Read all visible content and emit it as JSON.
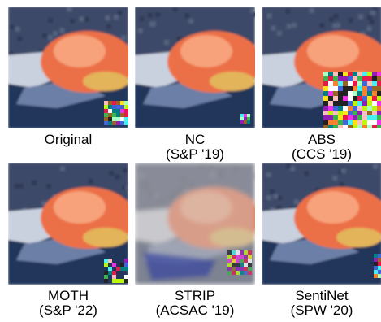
{
  "panels": [
    {
      "label": "Original"
    },
    {
      "label": "NC",
      "venue": "(S&P '19)"
    },
    {
      "label": "ABS",
      "venue": "(CCS '19)"
    },
    {
      "label": "MOTH",
      "venue": "(S&P '22)"
    },
    {
      "label": "STRIP",
      "venue": "(ACSAC '19)"
    },
    {
      "label": "SentiNet",
      "venue": "(SPW '20)"
    }
  ]
}
